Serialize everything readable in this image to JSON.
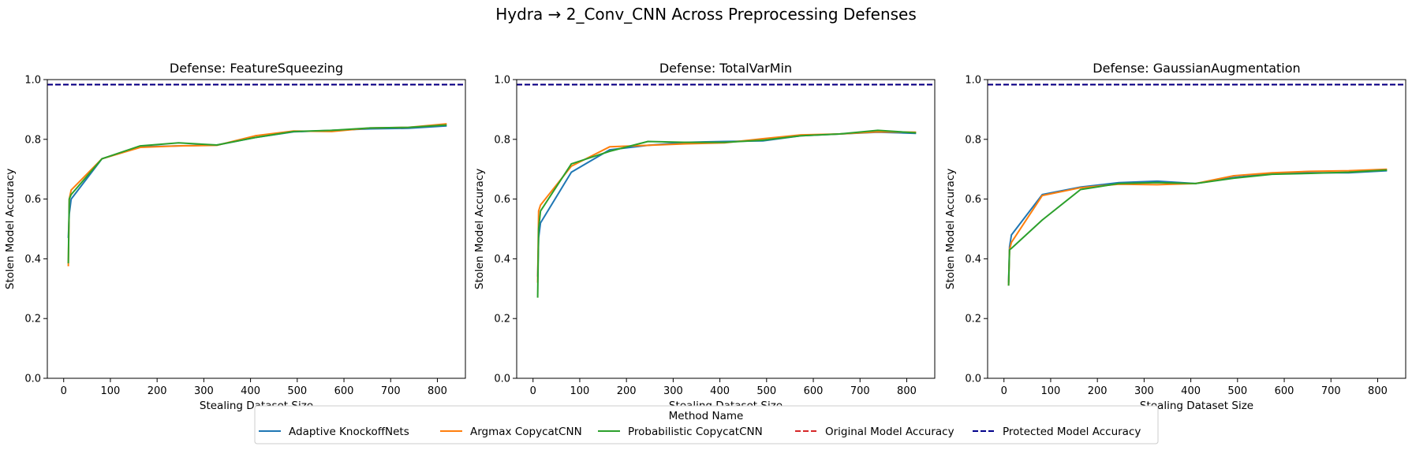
{
  "figure": {
    "title": "Hydra → 2_Conv_CNN Across Preprocessing Defenses"
  },
  "legend": {
    "title": "Method Name",
    "placement": "bottom-center"
  },
  "colors": {
    "adaptive": "#1f77b4",
    "argmax": "#ff7f0e",
    "probabilistic": "#2ca02c",
    "original": "#d62728",
    "protected": "#00008b"
  },
  "chart_data": [
    {
      "type": "line",
      "title": "Defense: FeatureSqueezing",
      "xlabel": "Stealing Dataset Size",
      "ylabel": "Stolen Model Accuracy",
      "xlim": [
        -35,
        860
      ],
      "ylim": [
        0,
        1
      ],
      "xticks": [
        "0",
        "100",
        "200",
        "300",
        "400",
        "500",
        "600",
        "700",
        "800"
      ],
      "yticks": [
        "0.0",
        "0.2",
        "0.4",
        "0.6",
        "0.8",
        "1.0"
      ],
      "grid": false,
      "series": [
        {
          "name": "Adaptive KnockoffNets",
          "style": "solid",
          "color": "#1f77b4",
          "x": [
            10,
            12,
            16,
            82,
            164,
            246,
            328,
            410,
            492,
            574,
            656,
            738,
            820
          ],
          "y": [
            0.47,
            0.55,
            0.6,
            0.735,
            0.775,
            0.778,
            0.781,
            0.806,
            0.825,
            0.83,
            0.835,
            0.837,
            0.845
          ]
        },
        {
          "name": "Argmax CopycatCNN",
          "style": "solid",
          "color": "#ff7f0e",
          "x": [
            10,
            12,
            16,
            82,
            164,
            246,
            328,
            410,
            492,
            574,
            656,
            738,
            820
          ],
          "y": [
            0.375,
            0.6,
            0.63,
            0.735,
            0.773,
            0.778,
            0.78,
            0.812,
            0.828,
            0.826,
            0.838,
            0.84,
            0.852
          ]
        },
        {
          "name": "Probabilistic CopycatCNN",
          "style": "solid",
          "color": "#2ca02c",
          "x": [
            10,
            12,
            16,
            82,
            164,
            246,
            328,
            410,
            492,
            574,
            656,
            738,
            820
          ],
          "y": [
            0.385,
            0.6,
            0.615,
            0.735,
            0.778,
            0.788,
            0.781,
            0.806,
            0.826,
            0.83,
            0.838,
            0.84,
            0.848
          ]
        },
        {
          "name": "Original Model Accuracy",
          "style": "dashed",
          "color": "#d62728",
          "x": [
            -35,
            860
          ],
          "y": [
            0.983,
            0.983
          ]
        },
        {
          "name": "Protected Model Accuracy",
          "style": "dashed",
          "color": "#00008b",
          "x": [
            -35,
            860
          ],
          "y": [
            0.983,
            0.983
          ]
        }
      ]
    },
    {
      "type": "line",
      "title": "Defense: TotalVarMin",
      "xlabel": "Stealing Dataset Size",
      "ylabel": "Stolen Model Accuracy",
      "xlim": [
        -35,
        860
      ],
      "ylim": [
        0,
        1
      ],
      "xticks": [
        "0",
        "100",
        "200",
        "300",
        "400",
        "500",
        "600",
        "700",
        "800"
      ],
      "yticks": [
        "0.0",
        "0.2",
        "0.4",
        "0.6",
        "0.8",
        "1.0"
      ],
      "grid": false,
      "series": [
        {
          "name": "Adaptive KnockoffNets",
          "style": "solid",
          "color": "#1f77b4",
          "x": [
            10,
            12,
            16,
            82,
            164,
            246,
            328,
            410,
            492,
            574,
            656,
            738,
            820
          ],
          "y": [
            0.34,
            0.47,
            0.52,
            0.69,
            0.765,
            0.78,
            0.79,
            0.793,
            0.795,
            0.812,
            0.818,
            0.824,
            0.82
          ]
        },
        {
          "name": "Argmax CopycatCNN",
          "style": "solid",
          "color": "#ff7f0e",
          "x": [
            10,
            12,
            16,
            82,
            164,
            246,
            328,
            410,
            492,
            574,
            656,
            738,
            820
          ],
          "y": [
            0.32,
            0.56,
            0.58,
            0.71,
            0.775,
            0.78,
            0.785,
            0.788,
            0.802,
            0.815,
            0.818,
            0.825,
            0.824
          ]
        },
        {
          "name": "Probabilistic CopycatCNN",
          "style": "solid",
          "color": "#2ca02c",
          "x": [
            10,
            12,
            16,
            82,
            164,
            246,
            328,
            410,
            492,
            574,
            656,
            738,
            820
          ],
          "y": [
            0.27,
            0.5,
            0.56,
            0.718,
            0.76,
            0.793,
            0.79,
            0.79,
            0.797,
            0.812,
            0.818,
            0.83,
            0.822
          ]
        },
        {
          "name": "Original Model Accuracy",
          "style": "dashed",
          "color": "#d62728",
          "x": [
            -35,
            860
          ],
          "y": [
            0.983,
            0.983
          ]
        },
        {
          "name": "Protected Model Accuracy",
          "style": "dashed",
          "color": "#00008b",
          "x": [
            -35,
            860
          ],
          "y": [
            0.983,
            0.983
          ]
        }
      ]
    },
    {
      "type": "line",
      "title": "Defense: GaussianAugmentation",
      "xlabel": "Stealing Dataset Size",
      "ylabel": "Stolen Model Accuracy",
      "xlim": [
        -35,
        860
      ],
      "ylim": [
        0,
        1
      ],
      "xticks": [
        "0",
        "100",
        "200",
        "300",
        "400",
        "500",
        "600",
        "700",
        "800"
      ],
      "yticks": [
        "0.0",
        "0.2",
        "0.4",
        "0.6",
        "0.8",
        "1.0"
      ],
      "grid": false,
      "series": [
        {
          "name": "Adaptive KnockoffNets",
          "style": "solid",
          "color": "#1f77b4",
          "x": [
            10,
            12,
            16,
            82,
            164,
            246,
            328,
            410,
            492,
            574,
            656,
            738,
            820
          ],
          "y": [
            0.32,
            0.44,
            0.48,
            0.615,
            0.64,
            0.655,
            0.66,
            0.652,
            0.672,
            0.685,
            0.688,
            0.688,
            0.695
          ]
        },
        {
          "name": "Argmax CopycatCNN",
          "style": "solid",
          "color": "#ff7f0e",
          "x": [
            10,
            12,
            16,
            82,
            164,
            246,
            328,
            410,
            492,
            574,
            656,
            738,
            820
          ],
          "y": [
            0.31,
            0.43,
            0.455,
            0.612,
            0.638,
            0.65,
            0.648,
            0.652,
            0.678,
            0.688,
            0.693,
            0.695,
            0.7
          ]
        },
        {
          "name": "Probabilistic CopycatCNN",
          "style": "solid",
          "color": "#2ca02c",
          "x": [
            10,
            12,
            16,
            82,
            164,
            246,
            328,
            410,
            492,
            574,
            656,
            738,
            820
          ],
          "y": [
            0.31,
            0.43,
            0.435,
            0.53,
            0.632,
            0.652,
            0.655,
            0.652,
            0.67,
            0.683,
            0.686,
            0.69,
            0.697
          ]
        },
        {
          "name": "Original Model Accuracy",
          "style": "dashed",
          "color": "#d62728",
          "x": [
            -35,
            860
          ],
          "y": [
            0.983,
            0.983
          ]
        },
        {
          "name": "Protected Model Accuracy",
          "style": "dashed",
          "color": "#00008b",
          "x": [
            -35,
            860
          ],
          "y": [
            0.983,
            0.983
          ]
        }
      ]
    }
  ]
}
